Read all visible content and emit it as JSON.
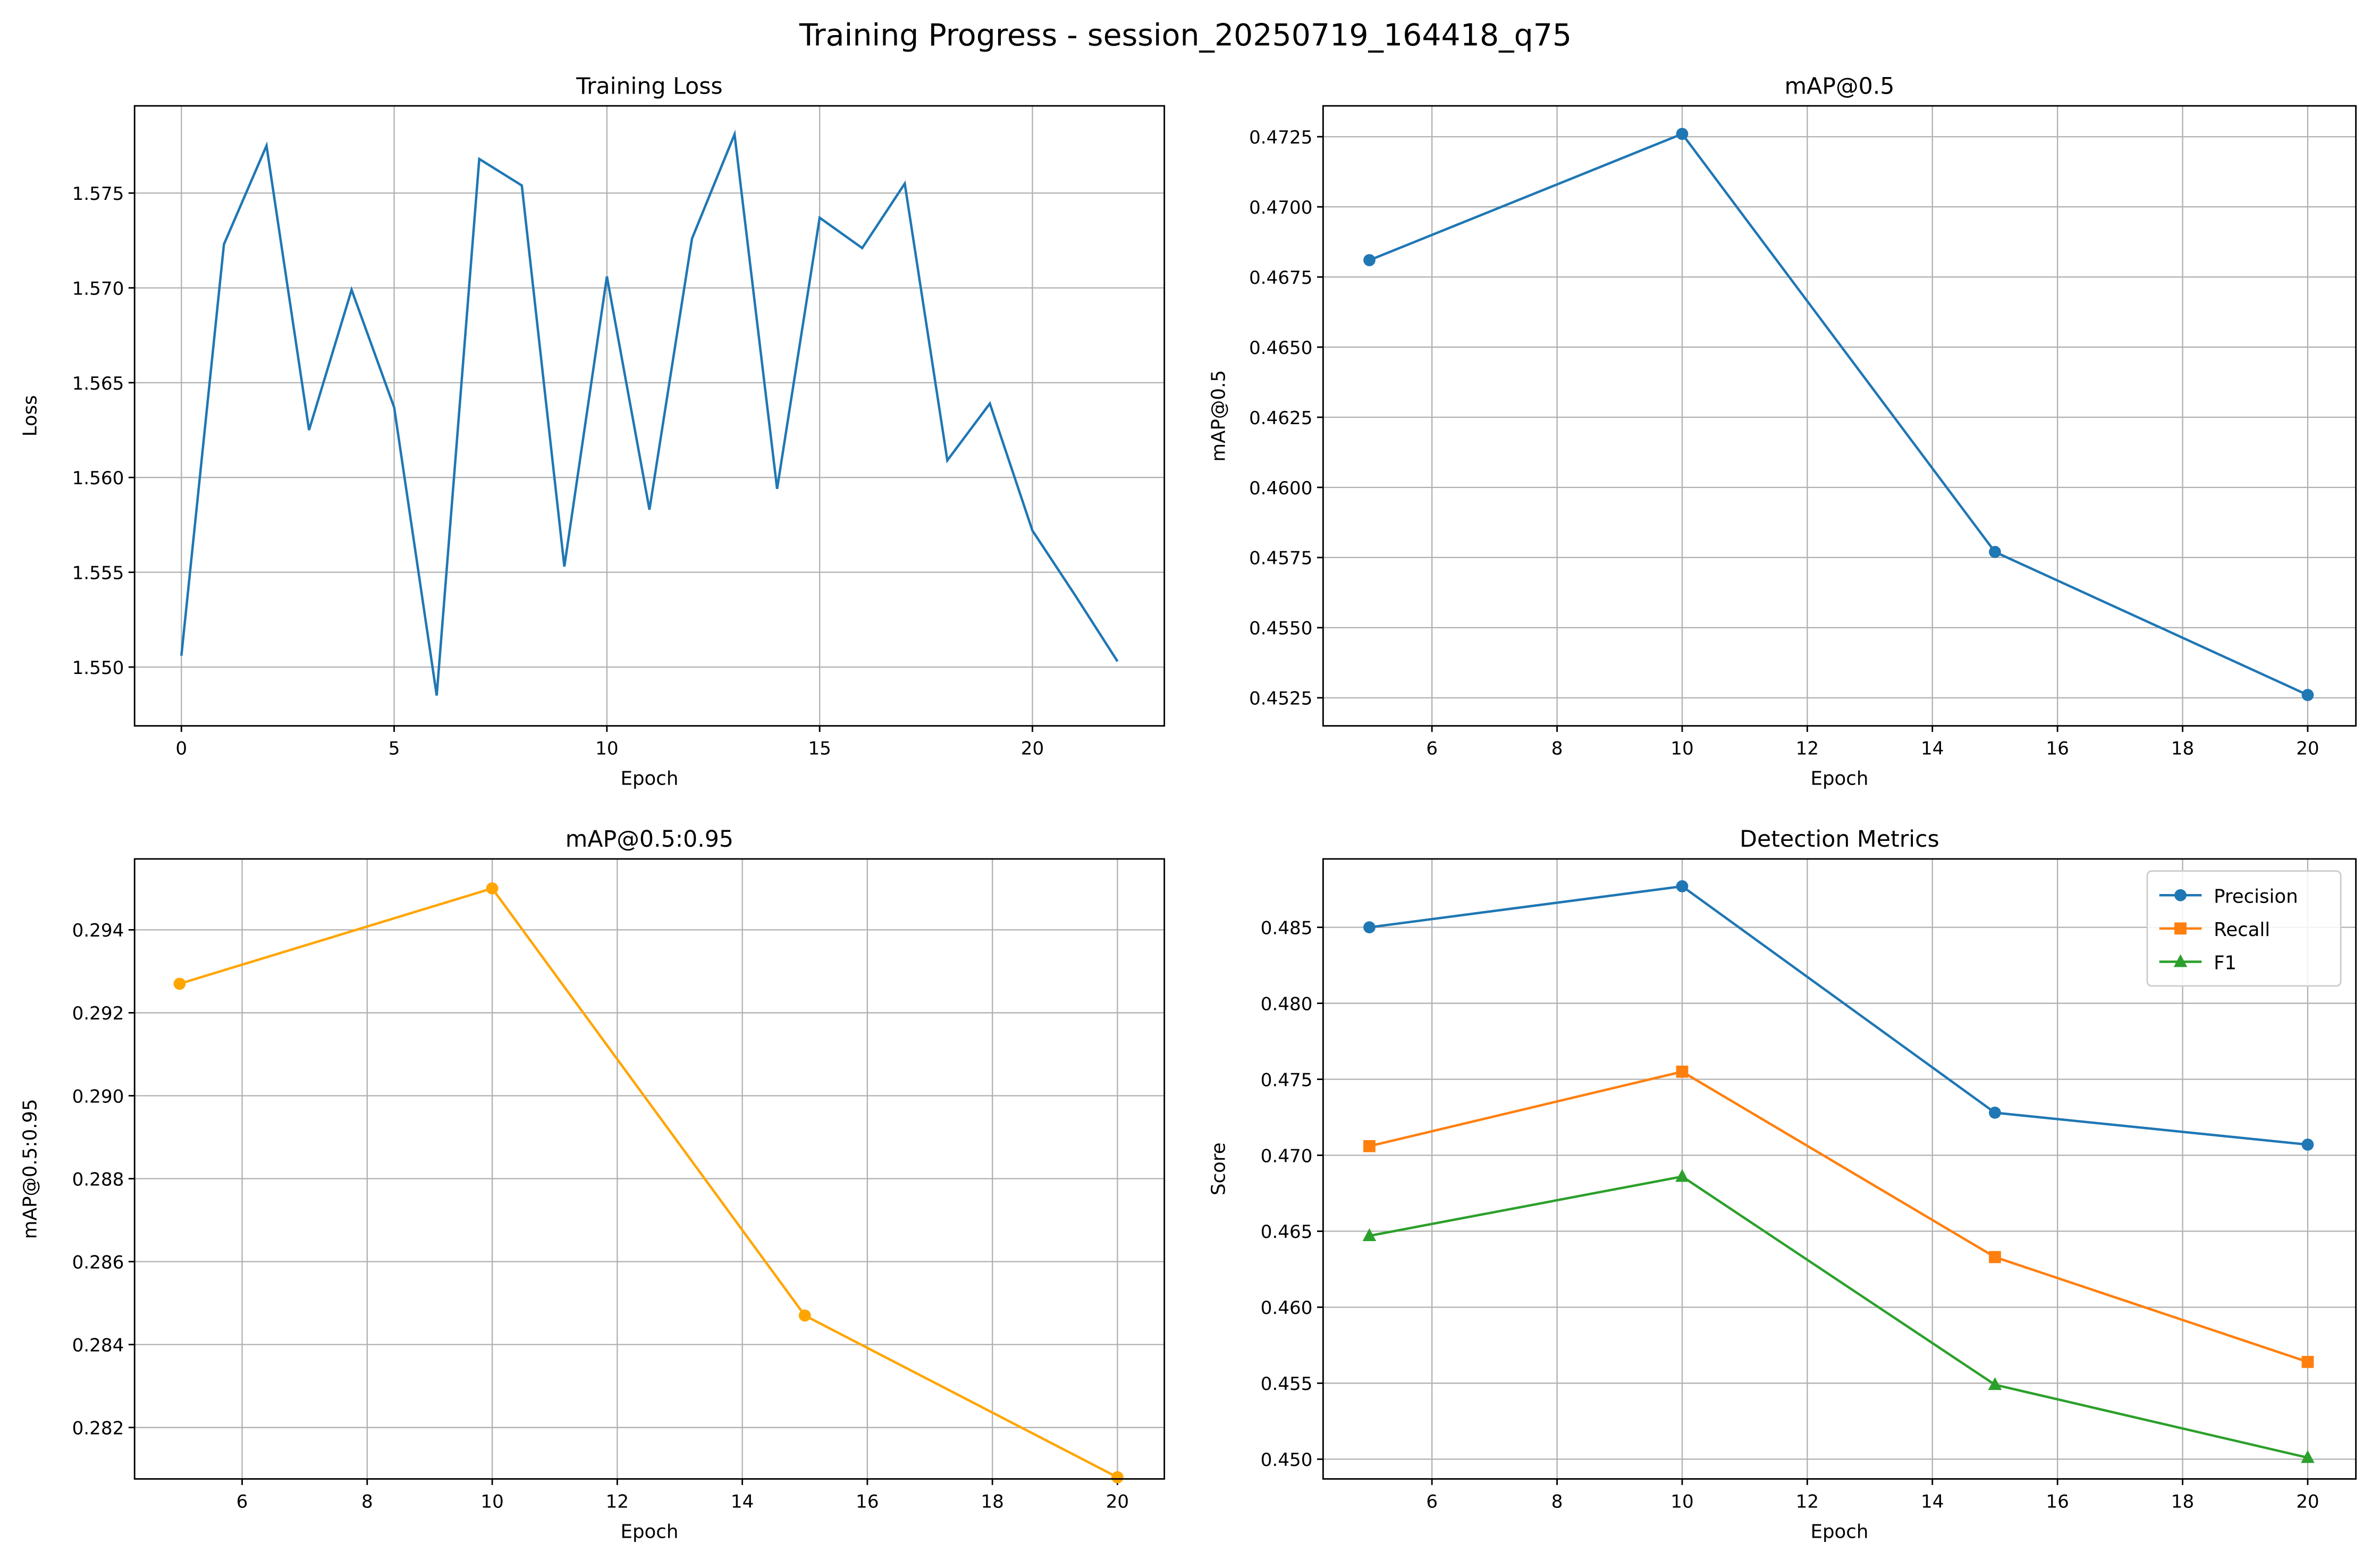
{
  "suptitle": "Training Progress - session_20250719_164418_q75",
  "chart_data": [
    {
      "type": "line",
      "title": "Training Loss",
      "xlabel": "Epoch",
      "ylabel": "Loss",
      "grid": true,
      "xlim": [
        -1.1,
        23.1
      ],
      "ylim": [
        1.5469,
        1.5796
      ],
      "xticks": [
        0,
        5,
        10,
        15,
        20
      ],
      "yticks": [
        1.55,
        1.555,
        1.56,
        1.565,
        1.57,
        1.575
      ],
      "ytick_labels": [
        "1.550",
        "1.555",
        "1.560",
        "1.565",
        "1.570",
        "1.575"
      ],
      "xtick_labels": [
        "0",
        "5",
        "10",
        "15",
        "20"
      ],
      "series": [
        {
          "color": "#1f77b4",
          "marker": "none",
          "x": [
            0,
            1,
            2,
            3,
            4,
            5,
            6,
            7,
            8,
            9,
            10,
            11,
            12,
            13,
            14,
            15,
            16,
            17,
            18,
            19,
            20,
            21,
            22
          ],
          "y": [
            1.5506,
            1.5723,
            1.5775,
            1.5625,
            1.5699,
            1.5637,
            1.5485,
            1.5768,
            1.5754,
            1.5553,
            1.5706,
            1.5583,
            1.5726,
            1.5781,
            1.5594,
            1.5737,
            1.5721,
            1.5755,
            1.5609,
            1.5639,
            1.5572,
            1.5538,
            1.5503
          ]
        }
      ]
    },
    {
      "type": "line",
      "title": "mAP@0.5",
      "xlabel": "Epoch",
      "ylabel": "mAP@0.5",
      "grid": true,
      "xlim": [
        4.26,
        20.77
      ],
      "ylim": [
        0.4515,
        0.4736
      ],
      "xticks": [
        6,
        8,
        10,
        12,
        14,
        16,
        18,
        20
      ],
      "xtick_labels": [
        "6",
        "8",
        "10",
        "12",
        "14",
        "16",
        "18",
        "20"
      ],
      "yticks": [
        0.4525,
        0.455,
        0.4575,
        0.46,
        0.4625,
        0.465,
        0.4675,
        0.47,
        0.4725
      ],
      "ytick_labels": [
        "0.4525",
        "0.4550",
        "0.4575",
        "0.4600",
        "0.4625",
        "0.4650",
        "0.4675",
        "0.4700",
        "0.4725"
      ],
      "series": [
        {
          "color": "#1f77b4",
          "marker": "circle",
          "x": [
            5,
            10,
            15,
            20
          ],
          "y": [
            0.4681,
            0.4726,
            0.4577,
            0.4526
          ]
        }
      ]
    },
    {
      "type": "line",
      "title": "mAP@0.5:0.95",
      "xlabel": "Epoch",
      "ylabel": "mAP@0.5:0.95",
      "grid": true,
      "xlim": [
        4.28,
        20.75
      ],
      "ylim": [
        0.28076,
        0.29571
      ],
      "xticks": [
        6,
        8,
        10,
        12,
        14,
        16,
        18,
        20
      ],
      "xtick_labels": [
        "6",
        "8",
        "10",
        "12",
        "14",
        "16",
        "18",
        "20"
      ],
      "yticks": [
        0.282,
        0.284,
        0.286,
        0.288,
        0.29,
        0.292,
        0.294
      ],
      "ytick_labels": [
        "0.282",
        "0.284",
        "0.286",
        "0.288",
        "0.290",
        "0.292",
        "0.294"
      ],
      "series": [
        {
          "color": "#ffa500",
          "marker": "circle",
          "x": [
            5,
            10,
            15,
            20
          ],
          "y": [
            0.2927,
            0.295,
            0.2847,
            0.2808
          ]
        }
      ]
    },
    {
      "type": "line",
      "title": "Detection Metrics",
      "xlabel": "Epoch",
      "ylabel": "Score",
      "grid": true,
      "legend": "top-right",
      "xlim": [
        4.26,
        20.77
      ],
      "ylim": [
        0.4487,
        0.4895
      ],
      "xticks": [
        6,
        8,
        10,
        12,
        14,
        16,
        18,
        20
      ],
      "xtick_labels": [
        "6",
        "8",
        "10",
        "12",
        "14",
        "16",
        "18",
        "20"
      ],
      "yticks": [
        0.45,
        0.455,
        0.46,
        0.465,
        0.47,
        0.475,
        0.48,
        0.485
      ],
      "ytick_labels": [
        "0.450",
        "0.455",
        "0.460",
        "0.465",
        "0.470",
        "0.475",
        "0.480",
        "0.485"
      ],
      "series": [
        {
          "name": "Precision",
          "color": "#1f77b4",
          "marker": "circle",
          "x": [
            5,
            10,
            15,
            20
          ],
          "y": [
            0.485,
            0.4877,
            0.4728,
            0.4707
          ]
        },
        {
          "name": "Recall",
          "color": "#ff7f0e",
          "marker": "square",
          "x": [
            5,
            10,
            15,
            20
          ],
          "y": [
            0.4706,
            0.4755,
            0.4633,
            0.4564
          ]
        },
        {
          "name": "F1",
          "color": "#2ca02c",
          "marker": "triangle",
          "x": [
            5,
            10,
            15,
            20
          ],
          "y": [
            0.4647,
            0.4686,
            0.4549,
            0.4501
          ]
        }
      ]
    }
  ]
}
